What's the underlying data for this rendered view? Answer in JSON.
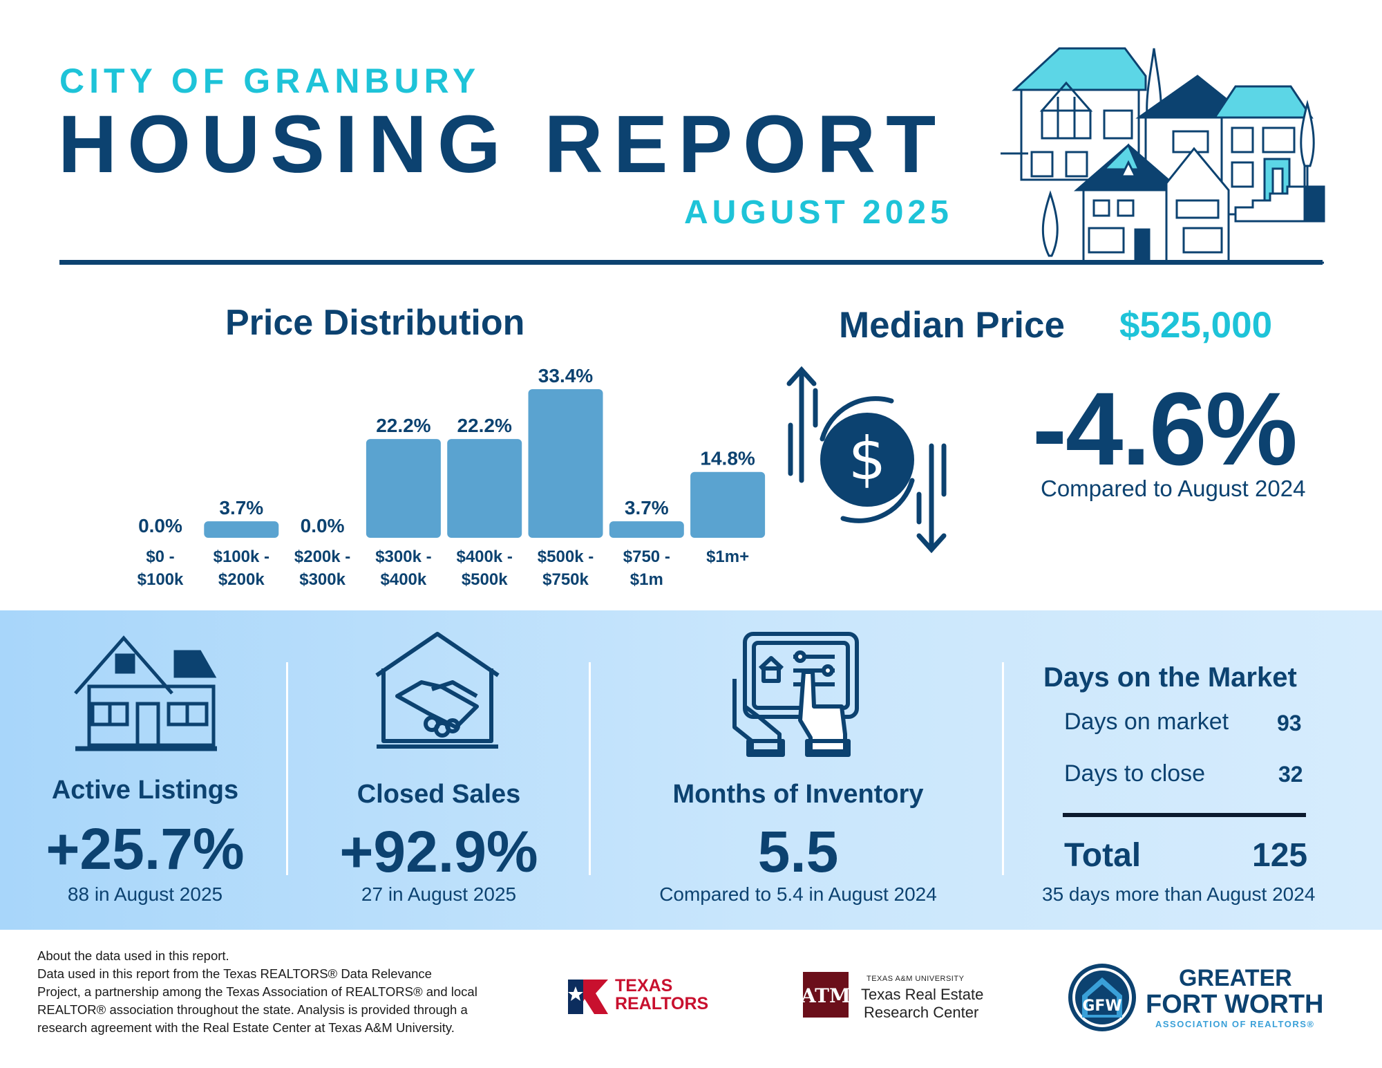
{
  "header": {
    "city": "CITY OF GRANBURY",
    "title": "HOUSING REPORT",
    "date": "AUGUST 2025"
  },
  "price_distribution": {
    "title": "Price Distribution"
  },
  "chart_data": {
    "type": "bar",
    "categories": [
      [
        "$0 -",
        "$100k"
      ],
      [
        "$100k -",
        "$200k"
      ],
      [
        "$200k -",
        "$300k"
      ],
      [
        "$300k -",
        "$400k"
      ],
      [
        "$400k -",
        "$500k"
      ],
      [
        "$500k -",
        "$750k"
      ],
      [
        "$750 -",
        "$1m"
      ],
      [
        "$1m+"
      ]
    ],
    "values": [
      0.0,
      3.7,
      0.0,
      22.2,
      22.2,
      33.4,
      3.7,
      14.8
    ],
    "value_labels": [
      "0.0%",
      "3.7%",
      "0.0%",
      "22.2%",
      "22.2%",
      "33.4%",
      "3.7%",
      "14.8%"
    ],
    "title": "Price Distribution",
    "ylim": [
      0,
      33.4
    ],
    "bar_color": "#5aa3d0",
    "grid": false
  },
  "median_price": {
    "label": "Median Price",
    "value": "$525,000",
    "change": "-4.6%",
    "compare": "Compared to August 2024",
    "icon": "dollar-cycle-icon"
  },
  "stats": {
    "active_listings": {
      "title": "Active Listings",
      "value": "+25.7%",
      "sub": "88 in August 2025",
      "icon": "house-icon"
    },
    "closed_sales": {
      "title": "Closed Sales",
      "value": "+92.9%",
      "sub": "27 in August 2025",
      "icon": "handshake-house-icon"
    },
    "months_inventory": {
      "title": "Months of Inventory",
      "value": "5.5",
      "sub": "Compared to 5.4 in August 2024",
      "icon": "tablet-hands-icon"
    },
    "days_on_market": {
      "title": "Days on the Market",
      "rows": [
        {
          "label": "Days on market",
          "value": "93"
        },
        {
          "label": "Days to close",
          "value": "32"
        }
      ],
      "total_label": "Total",
      "total_value": "125",
      "sub": "35 days more than August 2024"
    }
  },
  "footer": {
    "about_lines": [
      "About the data used in this report.",
      "Data used in this report from the Texas REALTORS® Data Relevance",
      "Project, a partnership among the Texas Association of REALTORS® and local",
      "REALTOR® association throughout the state. Analysis is provided through a",
      "research agreement with the Real Estate Center at Texas A&M University."
    ],
    "texas_realtors": {
      "line1": "TEXAS",
      "line2": "REALTORS"
    },
    "tamu": {
      "small": "TEXAS A&M UNIVERSITY",
      "line1": "Texas Real Estate",
      "line2": "Research Center"
    },
    "gfw": {
      "line1": "GREATER",
      "line2": "FORT WORTH",
      "line3": "ASSOCIATION OF REALTORS®"
    }
  },
  "colors": {
    "navy": "#0c4270",
    "cyan": "#1ec3d8",
    "bar": "#5aa3d0",
    "band_start": "#a8d6fa",
    "band_end": "#d6ecfd",
    "tamu_maroon": "#6b0f1a",
    "realtors_red": "#c8102e"
  }
}
